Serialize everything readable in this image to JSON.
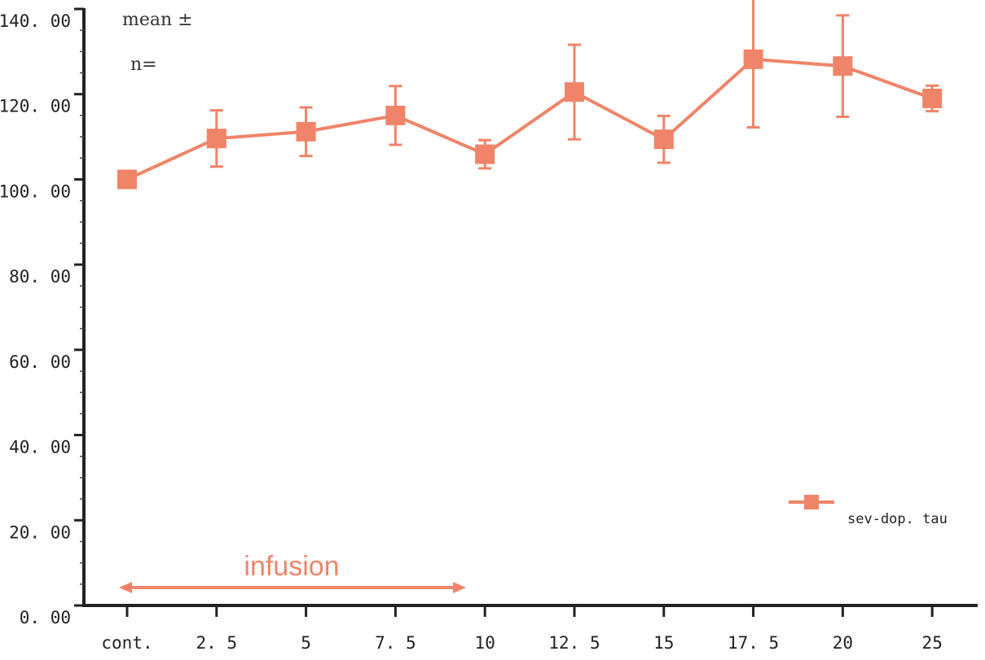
{
  "chart_data": {
    "type": "line",
    "title": "",
    "xlabel": "",
    "ylabel": "",
    "notes": [
      "mean ±",
      "n="
    ],
    "categories": [
      "cont.",
      "2.5",
      "5",
      "7.5",
      "10",
      "12.5",
      "15",
      "17.5",
      "20",
      "25"
    ],
    "x_tick_labels": [
      "cont.",
      "2. 5",
      "5",
      "7. 5",
      "10",
      "12. 5",
      "15",
      "17. 5",
      "20",
      "25"
    ],
    "ylim": [
      0,
      140
    ],
    "y_ticks": [
      0,
      20,
      40,
      60,
      80,
      100,
      120,
      140
    ],
    "y_tick_labels": [
      "0. 00",
      "20. 00",
      "40. 00",
      "60. 00",
      "80. 00",
      "100. 00",
      "120. 00",
      "140. 00"
    ],
    "grid": false,
    "legend_position": "bottom-right",
    "series": [
      {
        "name": "sev-dop. tau",
        "color": "#f08468",
        "marker": "square",
        "values": [
          100.0,
          109.6,
          111.2,
          115.0,
          105.9,
          120.5,
          109.4,
          128.2,
          126.6,
          119.0
        ],
        "error_upper": [
          0,
          6.6,
          5.7,
          6.9,
          3.3,
          11.1,
          5.5,
          16.0,
          11.9,
          3.0
        ],
        "error_lower": [
          0,
          6.6,
          5.7,
          6.9,
          3.3,
          11.1,
          5.5,
          16.0,
          11.9,
          3.0
        ]
      }
    ],
    "annotation": {
      "text": "infusion",
      "from_category": "cont.",
      "to_category": "10",
      "color": "#f08468"
    }
  }
}
